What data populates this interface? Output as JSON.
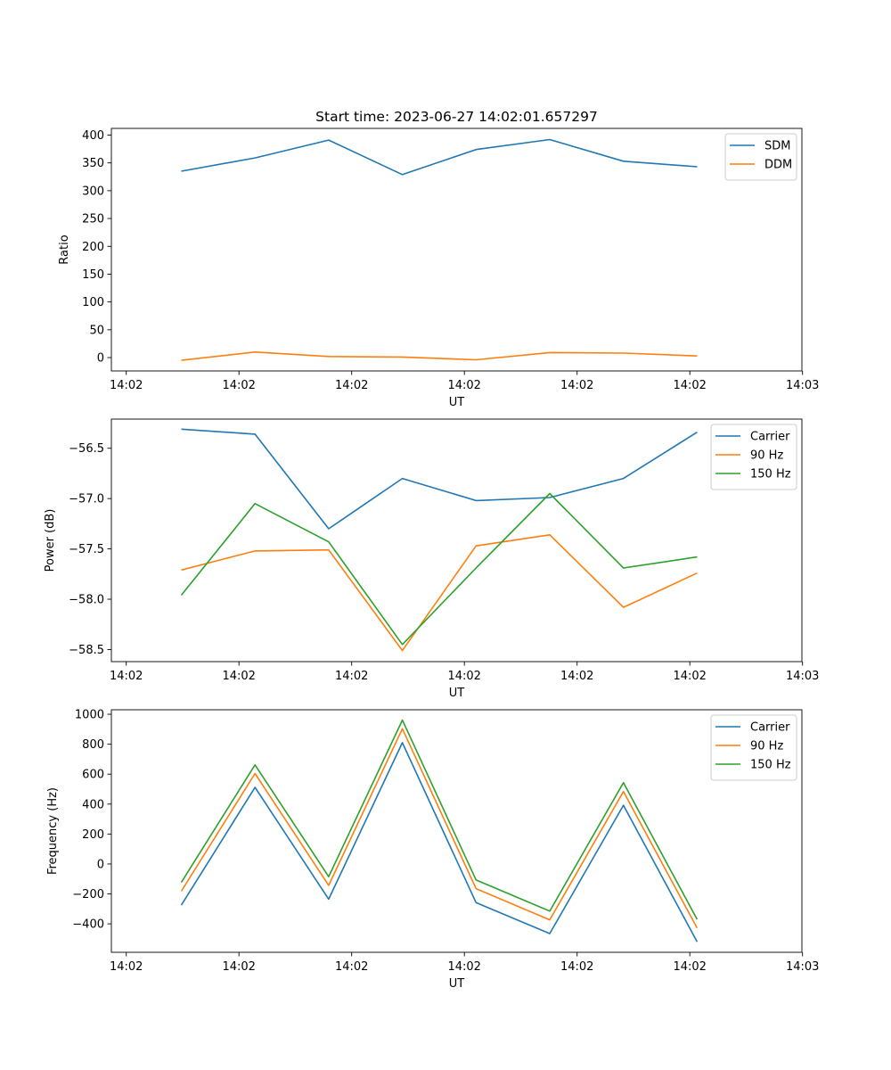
{
  "figure_title": "Start time: 2023-06-27 14:02:01.657297",
  "chart_data": [
    {
      "type": "line",
      "title": "Start time: 2023-06-27 14:02:01.657297",
      "xlabel": "UT",
      "ylabel": "Ratio",
      "x_tick_labels": [
        "14:02",
        "14:02",
        "14:02",
        "14:02",
        "14:02",
        "14:02",
        "14:03"
      ],
      "y_ticks": [
        0,
        50,
        100,
        150,
        200,
        250,
        300,
        350,
        400
      ],
      "ylim": [
        -24,
        412
      ],
      "legend": "top-right",
      "series": [
        {
          "name": "SDM",
          "color": "#1f77b4",
          "values": [
            335,
            359,
            391,
            329,
            374,
            392,
            353,
            343
          ]
        },
        {
          "name": "DDM",
          "color": "#ff7f0e",
          "values": [
            -5,
            10,
            2,
            1,
            -4,
            9,
            8,
            3
          ]
        }
      ]
    },
    {
      "type": "line",
      "xlabel": "UT",
      "ylabel": "Power (dB)",
      "x_tick_labels": [
        "14:02",
        "14:02",
        "14:02",
        "14:02",
        "14:02",
        "14:02",
        "14:03"
      ],
      "y_ticks": [
        -56.5,
        -57.0,
        -57.5,
        -58.0,
        -58.5
      ],
      "y_tick_labels": [
        "−56.5",
        "−57.0",
        "−57.5",
        "−58.0",
        "−58.5"
      ],
      "ylim": [
        -58.62,
        -56.21
      ],
      "legend": "top-right",
      "series": [
        {
          "name": "Carrier",
          "color": "#1f77b4",
          "values": [
            -56.31,
            -56.36,
            -57.3,
            -56.8,
            -57.02,
            -56.99,
            -56.8,
            -56.34
          ]
        },
        {
          "name": "90 Hz",
          "color": "#ff7f0e",
          "values": [
            -57.71,
            -57.52,
            -57.51,
            -58.51,
            -57.47,
            -57.36,
            -58.08,
            -57.74
          ]
        },
        {
          "name": "150 Hz",
          "color": "#2ca02c",
          "values": [
            -57.96,
            -57.05,
            -57.43,
            -58.45,
            -57.69,
            -56.95,
            -57.69,
            -57.58
          ]
        }
      ]
    },
    {
      "type": "line",
      "xlabel": "UT",
      "ylabel": "Frequency (Hz)",
      "x_tick_labels": [
        "14:02",
        "14:02",
        "14:02",
        "14:02",
        "14:02",
        "14:02",
        "14:03"
      ],
      "y_ticks": [
        -400,
        -200,
        0,
        200,
        400,
        600,
        800,
        1000
      ],
      "y_tick_labels": [
        "−400",
        "−200",
        "0",
        "200",
        "400",
        "600",
        "800",
        "1000"
      ],
      "ylim": [
        -590,
        1030
      ],
      "legend": "top-right",
      "series": [
        {
          "name": "Carrier",
          "color": "#1f77b4",
          "values": [
            -275,
            512,
            -235,
            810,
            -258,
            -465,
            392,
            -520
          ]
        },
        {
          "name": "90 Hz",
          "color": "#ff7f0e",
          "values": [
            -182,
            604,
            -143,
            903,
            -165,
            -373,
            484,
            -428
          ]
        },
        {
          "name": "150 Hz",
          "color": "#2ca02c",
          "values": [
            -123,
            662,
            -85,
            961,
            -107,
            -315,
            543,
            -370
          ]
        }
      ]
    }
  ]
}
